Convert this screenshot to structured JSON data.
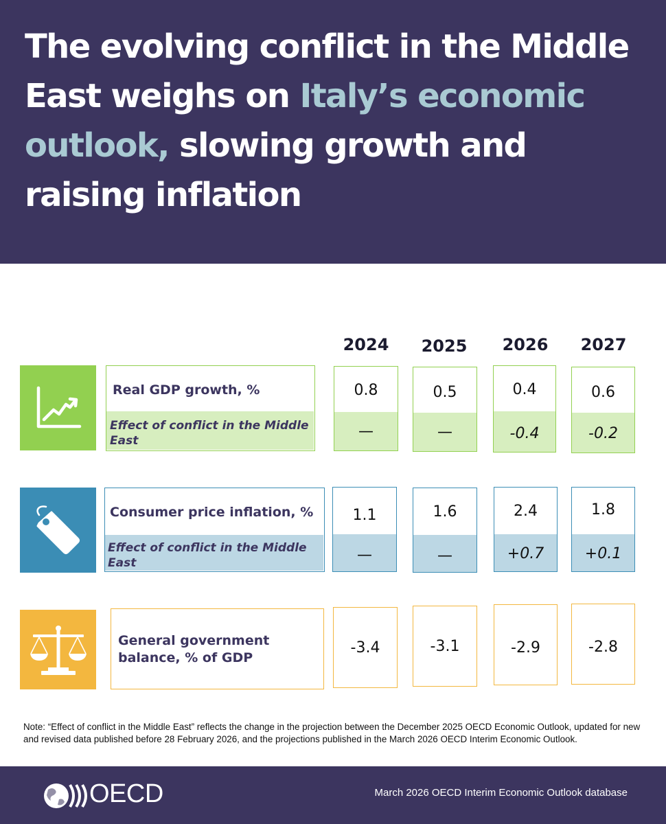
{
  "title": {
    "part1": "The evolving conflict in the Middle East weighs on ",
    "highlight": "Italy’s economic outlook,",
    "part2": " slowing growth and raising inflation"
  },
  "years": [
    "2024",
    "2025",
    "2026",
    "2027"
  ],
  "rows": [
    {
      "icon": "line-chart-up-icon",
      "label": "Real GDP growth, %",
      "sub_label": "Effect of conflict in the Middle East",
      "values": [
        "0.8",
        "0.5",
        "0.4",
        "0.6"
      ],
      "effects": [
        "—",
        "—",
        "-0.4",
        "-0.2"
      ],
      "color": "#92d050",
      "tint": "#d7eebf"
    },
    {
      "icon": "price-tag-icon",
      "label": "Consumer price inflation, %",
      "sub_label": "Effect of conflict in the Middle East",
      "values": [
        "1.1",
        "1.6",
        "2.4",
        "1.8"
      ],
      "effects": [
        "—",
        "—",
        "+0.7",
        "+0.1"
      ],
      "color": "#3b8db5",
      "tint": "#bcd7e4"
    },
    {
      "icon": "balance-scale-icon",
      "label": "General government balance, % of GDP",
      "values": [
        "-3.4",
        "-3.1",
        "-2.9",
        "-2.8"
      ],
      "color": "#f3b73f"
    }
  ],
  "note": "Note: “Effect of conflict in the Middle East” reflects the change in the projection between the December 2025 OECD Economic Outlook, updated for new and revised data published before 28 February 2026, and the projections published in the March 2026 OECD Interim Economic Outlook.",
  "footer": {
    "logo_text": "OECD",
    "source": "March 2026 OECD Interim Economic Outlook database"
  }
}
